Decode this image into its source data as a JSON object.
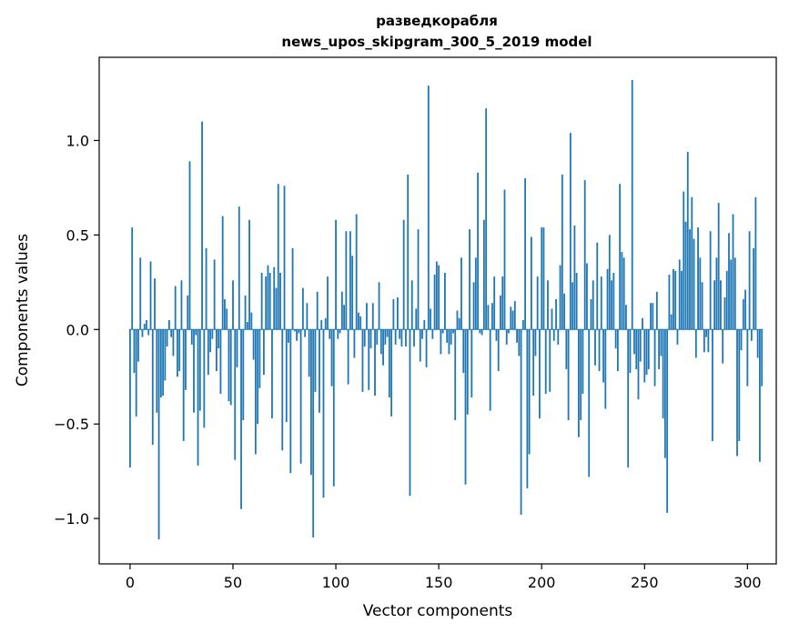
{
  "chart_data": {
    "type": "bar",
    "title": "разведкорабля",
    "subtitle": "news_upos_skipgram_300_5_2019 model",
    "xlabel": "Vector components",
    "ylabel": "Components values",
    "xlim": [
      -15,
      314
    ],
    "ylim": [
      -1.24,
      1.44
    ],
    "xticks": [
      0,
      50,
      100,
      150,
      200,
      250,
      300
    ],
    "xtick_labels": [
      "0",
      "50",
      "100",
      "150",
      "200",
      "250",
      "300"
    ],
    "yticks": [
      -1.0,
      -0.5,
      0.0,
      0.5,
      1.0
    ],
    "ytick_labels": [
      "−1.0",
      "−0.5",
      "0.0",
      "0.5",
      "1.0"
    ],
    "grid": false,
    "bar_color": "#1f77b4",
    "series": [
      {
        "values": [
          -0.73,
          0.54,
          -0.23,
          -0.46,
          -0.17,
          0.38,
          -0.04,
          0.03,
          0.05,
          -0.03,
          0.36,
          -0.61,
          0.27,
          -0.44,
          -1.11,
          -0.36,
          -0.35,
          -0.27,
          -0.09,
          0.05,
          -0.04,
          -0.14,
          0.23,
          -0.25,
          -0.22,
          0.26,
          -0.59,
          -0.32,
          0.18,
          0.89,
          -0.08,
          -0.44,
          -0.03,
          -0.72,
          -0.43,
          1.1,
          -0.52,
          0.43,
          -0.24,
          -0.12,
          -0.05,
          0.37,
          -0.22,
          -0.1,
          -0.34,
          0.6,
          0.16,
          0.11,
          -0.38,
          -0.4,
          0.26,
          -0.69,
          -0.2,
          0.65,
          -0.95,
          -0.48,
          0.18,
          0.04,
          0.58,
          0.09,
          -0.16,
          -0.66,
          -0.5,
          -0.31,
          0.3,
          -0.24,
          0.28,
          0.34,
          0.3,
          -0.47,
          0.33,
          0.22,
          0.77,
          0.3,
          -0.64,
          0.76,
          -0.49,
          -0.07,
          -0.76,
          0.43,
          -0.01,
          -0.06,
          -0.02,
          -0.71,
          0.22,
          -0.04,
          0.14,
          -0.25,
          -0.77,
          -1.1,
          -0.33,
          0.2,
          -0.44,
          0.05,
          -0.89,
          0.06,
          0.28,
          -0.05,
          -0.3,
          -0.83,
          0.58,
          -0.05,
          -0.02,
          0.2,
          0.13,
          0.52,
          -0.29,
          0.52,
          0.39,
          -0.15,
          0.61,
          0.09,
          0.07,
          -0.33,
          -0.09,
          0.14,
          -0.32,
          -0.1,
          0.14,
          -0.35,
          -0.08,
          0.25,
          -0.13,
          -0.19,
          -0.08,
          -0.04,
          -0.36,
          -0.46,
          0.16,
          -0.08,
          0.17,
          -0.05,
          -0.09,
          0.58,
          -0.09,
          0.82,
          -0.88,
          0.26,
          -0.09,
          0.11,
          0.53,
          -0.17,
          -0.05,
          0.05,
          -0.2,
          1.29,
          0.11,
          -0.05,
          0.29,
          0.36,
          0.34,
          -0.13,
          -0.02,
          0.3,
          -0.07,
          -0.13,
          -0.08,
          -0.02,
          -0.48,
          0.1,
          0.06,
          0.38,
          -0.23,
          -0.82,
          -0.45,
          0.53,
          -0.36,
          0.25,
          0.38,
          0.83,
          -0.02,
          -0.03,
          0.58,
          1.17,
          0.13,
          -0.43,
          0.14,
          0.28,
          -0.06,
          -0.22,
          0.18,
          0.28,
          0.74,
          -0.08,
          -0.02,
          0.12,
          0.1,
          0.15,
          -0.07,
          -0.14,
          -0.98,
          0.05,
          0.8,
          -0.84,
          -0.66,
          0.49,
          -0.35,
          -0.14,
          0.28,
          -0.47,
          0.54,
          0.54,
          -0.34,
          0.26,
          -0.33,
          0.11,
          -0.06,
          0.16,
          -0.08,
          0.34,
          0.82,
          0.19,
          -0.21,
          -0.48,
          1.04,
          0.25,
          0.55,
          0.3,
          -0.57,
          -0.48,
          -0.34,
          0.79,
          0.35,
          -0.78,
          0.16,
          0.26,
          -0.19,
          0.46,
          -0.22,
          0.28,
          -0.28,
          -0.42,
          0.32,
          0.5,
          0.26,
          0.3,
          -0.1,
          -0.22,
          0.77,
          0.41,
          0.38,
          0.13,
          -0.73,
          -0.23,
          1.32,
          -0.13,
          -0.21,
          -0.37,
          -0.17,
          0.06,
          -0.28,
          -0.24,
          -0.21,
          0.14,
          0.14,
          -0.3,
          0.2,
          -0.21,
          -0.14,
          -0.47,
          -0.68,
          -0.97,
          0.29,
          0.08,
          0.32,
          0.31,
          -0.08,
          0.37,
          0.31,
          0.73,
          0.57,
          0.94,
          0.53,
          0.7,
          0.48,
          -0.15,
          0.54,
          0.38,
          0.25,
          -0.12,
          -0.04,
          -0.12,
          0.52,
          -0.59,
          0.26,
          0.38,
          0.67,
          0.26,
          -0.18,
          0.17,
          0.31,
          0.51,
          0.37,
          0.61,
          0.38,
          -0.67,
          -0.59,
          -0.11,
          0.16,
          0.21,
          -0.3,
          0.52,
          -0.06,
          0.43,
          0.7,
          -0.15,
          -0.7,
          -0.3
        ]
      }
    ]
  }
}
